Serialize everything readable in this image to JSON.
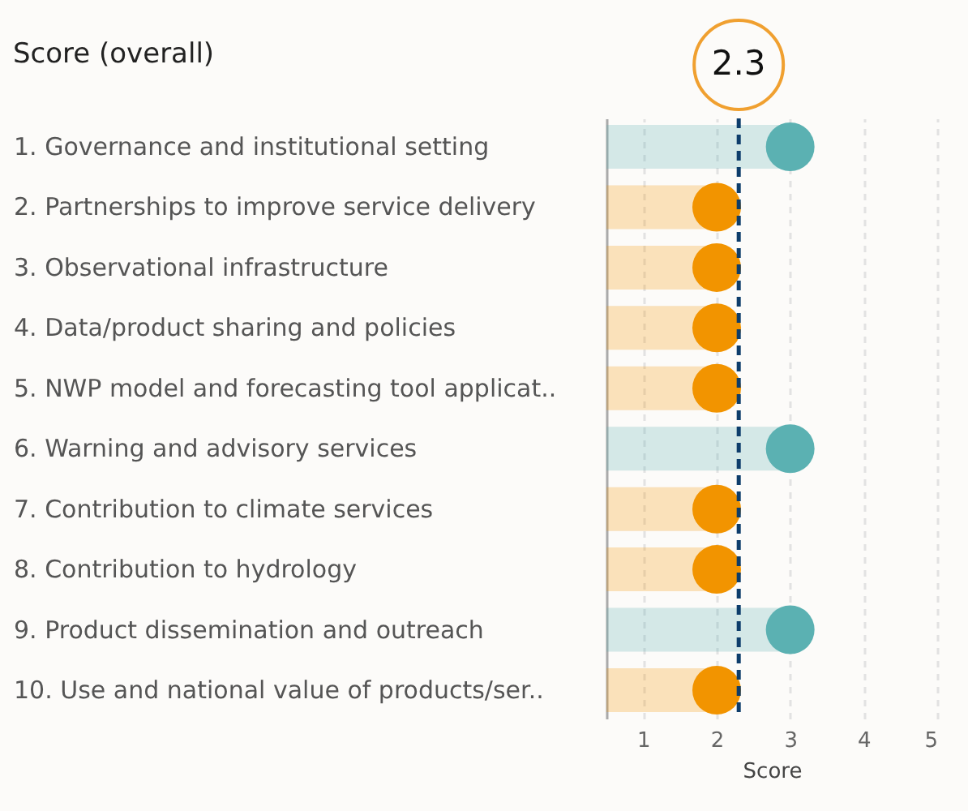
{
  "chart_data": {
    "type": "lollipop",
    "orientation": "horizontal",
    "title": "Score (overall)",
    "xlabel": "Score",
    "categories": [
      "1. Governance and institutional setting",
      "2. Partnerships to improve service delivery",
      "3. Observational infrastructure",
      "4. Data/product sharing and policies",
      "5. NWP model and forecasting tool applicat..",
      "6. Warning and advisory services",
      "7. Contribution to climate services",
      "8. Contribution to hydrology",
      "9. Product dissemination and outreach",
      "10. Use and national value of products/ser.."
    ],
    "values": [
      3,
      2,
      2,
      2,
      2,
      3,
      2,
      2,
      3,
      2
    ],
    "colors": [
      "#5bb1b2",
      "#f29400",
      "#f29400",
      "#f29400",
      "#f29400",
      "#5bb1b2",
      "#f29400",
      "#f29400",
      "#5bb1b2",
      "#f29400"
    ],
    "xlim": [
      0.5,
      5
    ],
    "xticks": [
      1,
      2,
      3,
      4,
      5
    ],
    "grid": "x",
    "marker": "circle",
    "ref_lines": [
      {
        "axis": "x",
        "value": 2.3,
        "label": "2.3",
        "color": "#0d3d6b",
        "line_style": "dashed"
      }
    ]
  }
}
